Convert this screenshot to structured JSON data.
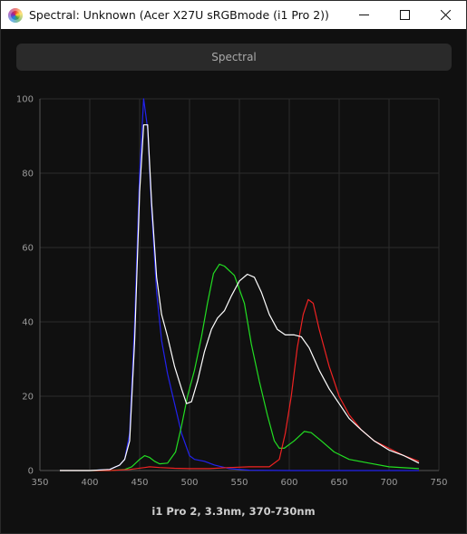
{
  "window": {
    "title": "Spectral: Unknown (Acer X27U sRGBmode (i1 Pro 2))",
    "icon": "app-spectrum-icon"
  },
  "controls": {
    "minimize_icon": "minimize-icon",
    "maximize_icon": "maximize-icon",
    "close_icon": "close-icon"
  },
  "view_button": {
    "label": "Spectral"
  },
  "chart_data": {
    "type": "line",
    "title": "",
    "xlabel": "i1 Pro 2, 3.3nm, 370-730nm",
    "ylabel": "",
    "xlim": [
      350,
      750
    ],
    "ylim": [
      0,
      100
    ],
    "x_ticks": [
      350,
      400,
      450,
      500,
      550,
      600,
      650,
      700,
      750
    ],
    "y_ticks": [
      0,
      20,
      40,
      60,
      80,
      100
    ],
    "grid": true,
    "background": "#101010",
    "series": [
      {
        "color": "#2222ee",
        "points": [
          [
            370,
            0
          ],
          [
            400,
            0
          ],
          [
            420,
            0.3
          ],
          [
            430,
            1.5
          ],
          [
            435,
            3
          ],
          [
            440,
            10
          ],
          [
            445,
            40
          ],
          [
            450,
            80
          ],
          [
            454,
            100
          ],
          [
            458,
            92
          ],
          [
            462,
            70
          ],
          [
            467,
            48
          ],
          [
            472,
            35
          ],
          [
            478,
            26
          ],
          [
            485,
            18
          ],
          [
            492,
            10
          ],
          [
            500,
            4
          ],
          [
            505,
            3
          ],
          [
            515,
            2.5
          ],
          [
            525,
            1.5
          ],
          [
            540,
            0.5
          ],
          [
            560,
            0.1
          ],
          [
            600,
            0
          ],
          [
            650,
            0
          ],
          [
            730,
            0
          ]
        ]
      },
      {
        "color": "#22dd22",
        "points": [
          [
            370,
            0
          ],
          [
            420,
            0
          ],
          [
            435,
            0.3
          ],
          [
            442,
            1
          ],
          [
            450,
            3
          ],
          [
            455,
            4
          ],
          [
            460,
            3.5
          ],
          [
            465,
            2.5
          ],
          [
            470,
            1.8
          ],
          [
            478,
            2
          ],
          [
            486,
            5
          ],
          [
            492,
            12
          ],
          [
            498,
            20
          ],
          [
            505,
            27
          ],
          [
            512,
            36
          ],
          [
            518,
            45
          ],
          [
            524,
            53
          ],
          [
            530,
            55.5
          ],
          [
            535,
            55
          ],
          [
            545,
            52.5
          ],
          [
            555,
            45
          ],
          [
            562,
            34
          ],
          [
            570,
            24
          ],
          [
            578,
            15
          ],
          [
            585,
            8
          ],
          [
            590,
            6
          ],
          [
            595,
            6
          ],
          [
            605,
            8
          ],
          [
            615,
            10.5
          ],
          [
            622,
            10.2
          ],
          [
            632,
            8
          ],
          [
            645,
            5
          ],
          [
            660,
            3
          ],
          [
            680,
            2
          ],
          [
            700,
            1
          ],
          [
            730,
            0.5
          ]
        ]
      },
      {
        "color": "#ee2222",
        "points": [
          [
            370,
            0
          ],
          [
            420,
            0
          ],
          [
            440,
            0.3
          ],
          [
            455,
            0.8
          ],
          [
            460,
            1
          ],
          [
            470,
            0.8
          ],
          [
            485,
            0.6
          ],
          [
            500,
            0.5
          ],
          [
            520,
            0.5
          ],
          [
            540,
            0.8
          ],
          [
            560,
            1
          ],
          [
            580,
            1
          ],
          [
            590,
            3
          ],
          [
            596,
            10
          ],
          [
            602,
            20
          ],
          [
            608,
            33
          ],
          [
            614,
            42
          ],
          [
            619,
            46
          ],
          [
            624,
            45
          ],
          [
            630,
            38
          ],
          [
            640,
            28
          ],
          [
            650,
            20
          ],
          [
            660,
            15
          ],
          [
            672,
            11
          ],
          [
            685,
            8
          ],
          [
            700,
            6
          ],
          [
            715,
            4
          ],
          [
            730,
            2.5
          ]
        ]
      },
      {
        "color": "#ffffff",
        "points": [
          [
            370,
            0
          ],
          [
            400,
            0
          ],
          [
            420,
            0.3
          ],
          [
            430,
            1.5
          ],
          [
            435,
            3
          ],
          [
            440,
            8
          ],
          [
            445,
            35
          ],
          [
            450,
            75
          ],
          [
            454,
            93
          ],
          [
            458,
            93
          ],
          [
            462,
            72
          ],
          [
            467,
            52
          ],
          [
            472,
            42
          ],
          [
            478,
            36
          ],
          [
            485,
            28
          ],
          [
            492,
            22
          ],
          [
            497,
            18
          ],
          [
            502,
            18.5
          ],
          [
            508,
            24
          ],
          [
            515,
            32
          ],
          [
            522,
            38
          ],
          [
            528,
            41
          ],
          [
            535,
            43
          ],
          [
            542,
            47
          ],
          [
            550,
            51
          ],
          [
            558,
            52.8
          ],
          [
            565,
            52
          ],
          [
            572,
            48
          ],
          [
            580,
            42
          ],
          [
            588,
            38
          ],
          [
            596,
            36.5
          ],
          [
            605,
            36.5
          ],
          [
            612,
            36
          ],
          [
            620,
            33
          ],
          [
            630,
            27
          ],
          [
            640,
            22
          ],
          [
            650,
            18
          ],
          [
            660,
            14
          ],
          [
            672,
            11
          ],
          [
            685,
            8
          ],
          [
            700,
            5.5
          ],
          [
            715,
            4
          ],
          [
            730,
            2
          ]
        ]
      }
    ]
  }
}
